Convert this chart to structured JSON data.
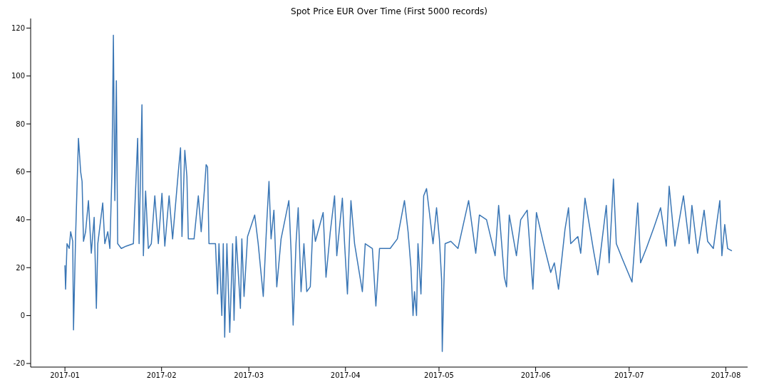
{
  "chart_data": {
    "type": "line",
    "title": "Spot Price EUR Over Time (First 5000 records)",
    "xlim": [
      "2016-12-21",
      "2017-08-08"
    ],
    "xticks": [
      "2017-01",
      "2017-02",
      "2017-03",
      "2017-04",
      "2017-05",
      "2017-06",
      "2017-07",
      "2017-08"
    ],
    "ylim": [
      -21.5,
      124
    ],
    "yticks": [
      -20,
      0,
      20,
      40,
      60,
      80,
      100,
      120
    ],
    "grid": false,
    "legend": false,
    "marker": "none",
    "line_style": "solid",
    "series": [
      {
        "color": "#3a76b5",
        "x": [
          "2017-01-01T00:00",
          "2017-01-01T05:00",
          "2017-01-01T16:00",
          "2017-01-02T09:00",
          "2017-01-02T20:00",
          "2017-01-03T12:00",
          "2017-01-03T18:00",
          "2017-01-04T10:00",
          "2017-01-05T08:00",
          "2017-01-06T01:00",
          "2017-01-06T12:00",
          "2017-01-06T23:00",
          "2017-01-07T15:00",
          "2017-01-08T13:00",
          "2017-01-09T11:00",
          "2017-01-10T09:00",
          "2017-01-11T02:00",
          "2017-01-11T13:00",
          "2017-01-13T03:00",
          "2017-01-13T19:00",
          "2017-01-14T18:00",
          "2017-01-15T10:00",
          "2017-01-16T02:00",
          "2017-01-16T13:00",
          "2017-01-17T00:00",
          "2017-01-17T12:00",
          "2017-01-17T22:00",
          "2017-01-19T02:00",
          "2017-01-20T16:00",
          "2017-01-22T23:00",
          "2017-01-24T08:00",
          "2017-01-24T19:00",
          "2017-01-25T17:00",
          "2017-01-26T04:00",
          "2017-01-26T21:00",
          "2017-01-27T18:00",
          "2017-01-28T17:00",
          "2017-01-29T20:00",
          "2017-01-30T23:00",
          "2017-02-01T03:00",
          "2017-02-02T01:00",
          "2017-02-03T10:00",
          "2017-02-04T13:00",
          "2017-02-06T09:00",
          "2017-02-07T02:00",
          "2017-02-07T13:00",
          "2017-02-08T11:00",
          "2017-02-09T03:00",
          "2017-02-09T14:00",
          "2017-02-11T10:00",
          "2017-02-12T19:00",
          "2017-02-13T17:00",
          "2017-02-14T20:00",
          "2017-02-15T07:00",
          "2017-02-15T18:00",
          "2017-02-16T05:00",
          "2017-02-18T07:00",
          "2017-02-18T23:00",
          "2017-02-19T10:00",
          "2017-02-20T08:00",
          "2017-02-20T19:00",
          "2017-02-21T06:00",
          "2017-02-21T23:00",
          "2017-02-22T21:00",
          "2017-02-23T19:00",
          "2017-02-24T06:00",
          "2017-02-24T22:00",
          "2017-02-26T07:00",
          "2017-02-26T18:00",
          "2017-02-27T11:00",
          "2017-02-28T14:00",
          "2017-03-02T21:00",
          "2017-03-04T00:00",
          "2017-03-05T15:00",
          "2017-03-06T18:00",
          "2017-03-07T11:00",
          "2017-03-08T03:00",
          "2017-03-09T01:00",
          "2017-03-09T23:00",
          "2017-03-11T08:00",
          "2017-03-13T20:00",
          "2017-03-14T13:00",
          "2017-03-15T05:00",
          "2017-03-16T03:00",
          "2017-03-16T20:00",
          "2017-03-17T18:00",
          "2017-03-18T16:00",
          "2017-03-19T14:00",
          "2017-03-20T17:00",
          "2017-03-21T15:00",
          "2017-03-22T08:00",
          "2017-03-24T20:00",
          "2017-03-25T18:00",
          "2017-03-27T03:00",
          "2017-03-28T12:00",
          "2017-03-29T05:00",
          "2017-03-31T00:00",
          "2017-03-31T17:00",
          "2017-04-01T15:00",
          "2017-04-02T18:00",
          "2017-04-03T22:00",
          "2017-04-06T10:00",
          "2017-04-07T08:00",
          "2017-04-09T15:00",
          "2017-04-10T18:00",
          "2017-04-11T22:00",
          "2017-04-15T08:00",
          "2017-04-17T15:00",
          "2017-04-19T22:00",
          "2017-04-21T02:00",
          "2017-04-22T00:00",
          "2017-04-22T16:00",
          "2017-04-23T03:00",
          "2017-04-23T19:00",
          "2017-04-24T06:00",
          "2017-04-25T05:00",
          "2017-04-26T02:00",
          "2017-04-27T00:00",
          "2017-04-27T22:00",
          "2017-04-29T02:00",
          "2017-04-30T05:00",
          "2017-05-01T03:00",
          "2017-05-01T20:00",
          "2017-05-02T01:00",
          "2017-05-02T12:00",
          "2017-05-02T23:00",
          "2017-05-04T19:00",
          "2017-05-07T02:00",
          "2017-05-10T12:00",
          "2017-05-12T19:00",
          "2017-05-13T23:00",
          "2017-05-16T06:00",
          "2017-05-19T00:00",
          "2017-05-20T03:00",
          "2017-05-21T23:00",
          "2017-05-22T16:00",
          "2017-05-23T13:00",
          "2017-05-25T20:00",
          "2017-05-27T05:00",
          "2017-05-29T07:00",
          "2017-05-31T03:00",
          "2017-06-01T06:00",
          "2017-06-03T13:00",
          "2017-06-05T20:00",
          "2017-06-07T00:00",
          "2017-06-08T08:00",
          "2017-06-10T10:00",
          "2017-06-11T13:00",
          "2017-06-12T06:00",
          "2017-06-14T13:00",
          "2017-06-15T11:00",
          "2017-06-16T20:00",
          "2017-06-19T14:00",
          "2017-06-20T23:00",
          "2017-06-23T16:00",
          "2017-06-24T14:00",
          "2017-06-25T23:00",
          "2017-06-26T21:00",
          "2017-06-28T17:00",
          "2017-07-01T22:00",
          "2017-07-03T18:00",
          "2017-07-04T16:00",
          "2017-07-06T12:00",
          "2017-07-09T00:00",
          "2017-07-11T02:00",
          "2017-07-12T22:00",
          "2017-07-13T20:00",
          "2017-07-15T16:00",
          "2017-07-18T10:00",
          "2017-07-20T06:00",
          "2017-07-21T03:00",
          "2017-07-22T23:00",
          "2017-07-25T01:00",
          "2017-07-26T04:00",
          "2017-07-28T00:00",
          "2017-07-30T02:00",
          "2017-07-30T18:00",
          "2017-07-31T16:00",
          "2017-08-01T14:00",
          "2017-08-02T23:00"
        ],
        "values": [
          21,
          11,
          30,
          28,
          35,
          31,
          -6,
          33,
          74,
          60,
          56,
          31,
          35,
          48,
          26,
          41,
          3,
          30,
          47,
          30,
          35,
          28,
          60,
          117,
          48,
          98,
          30,
          28,
          29,
          30,
          74,
          30,
          88,
          25,
          52,
          28,
          30,
          50,
          30,
          51,
          29,
          50,
          32,
          60,
          70,
          33,
          69,
          58,
          32,
          32,
          50,
          35,
          54,
          63,
          62,
          30,
          30,
          9,
          30,
          0,
          30,
          -9,
          30,
          -7,
          30,
          -2,
          33,
          3,
          32,
          8,
          33,
          42,
          30,
          8,
          39,
          56,
          32,
          44,
          12,
          32,
          48,
          27,
          -4,
          30,
          45,
          10,
          30,
          10,
          12,
          40,
          31,
          43,
          16,
          35,
          50,
          25,
          49,
          30,
          9,
          48,
          30,
          10,
          30,
          28,
          4,
          28,
          28,
          32,
          48,
          35,
          20,
          0,
          10,
          0,
          30,
          9,
          50,
          53,
          43,
          30,
          45,
          32,
          15,
          -15,
          10,
          30,
          31,
          28,
          48,
          26,
          42,
          40,
          25,
          46,
          16,
          12,
          42,
          25,
          40,
          44,
          11,
          43,
          30,
          18,
          22,
          11,
          36,
          45,
          30,
          33,
          26,
          49,
          27,
          17,
          46,
          22,
          57,
          30,
          24,
          14,
          47,
          22,
          28,
          37,
          45,
          29,
          54,
          29,
          50,
          30,
          46,
          26,
          44,
          31,
          28,
          48,
          25,
          38,
          28,
          27
        ]
      }
    ]
  }
}
